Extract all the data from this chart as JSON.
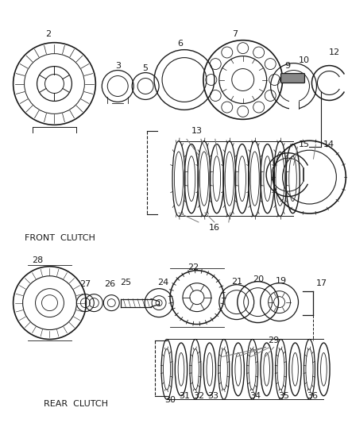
{
  "bg_color": "#ffffff",
  "line_color": "#1a1a1a",
  "front_clutch_label": "FRONT  CLUTCH",
  "rear_clutch_label": "REAR  CLUTCH",
  "fig_w": 4.38,
  "fig_h": 5.33,
  "dpi": 100
}
